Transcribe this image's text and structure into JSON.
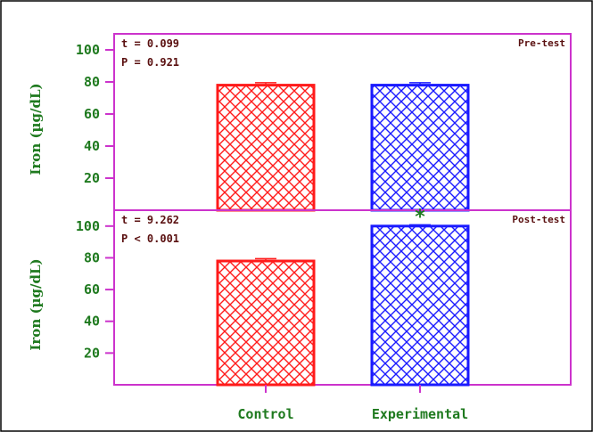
{
  "chart_data": {
    "type": "bar",
    "categories": [
      "Control",
      "Experimental"
    ],
    "colors": {
      "Control": "#ff1a1a",
      "Experimental": "#1a1aff",
      "axis": "#cc33cc",
      "text": "#1f7a1f",
      "stats": "#5a1010"
    },
    "ylabel": "Iron (µg/dL)",
    "ylim": [
      0,
      110
    ],
    "yticks": [
      20,
      40,
      60,
      80,
      100
    ],
    "panels": [
      {
        "name": "Pre-test",
        "values": [
          78,
          78
        ],
        "errors": [
          1.5,
          1.5
        ],
        "t_stat": "t = 0.099",
        "p_value": "P = 0.921",
        "significance": [
          "",
          ""
        ]
      },
      {
        "name": "Post-test",
        "values": [
          78,
          100
        ],
        "errors": [
          1.5,
          0.8
        ],
        "t_stat": "t = 9.262",
        "p_value": "P < 0.001",
        "significance": [
          "",
          "*"
        ]
      }
    ]
  }
}
